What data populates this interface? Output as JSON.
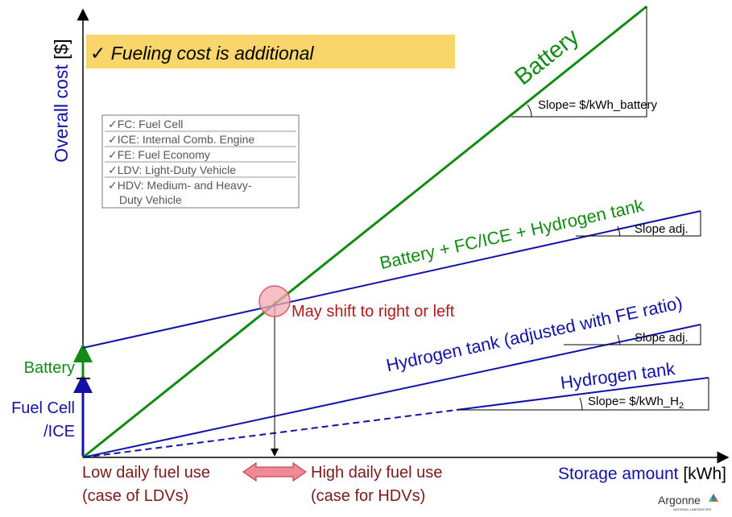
{
  "note": {
    "check": "✓",
    "text": "Fueling cost is additional"
  },
  "y_axis": {
    "label": "Overall cost",
    "unit": "[$]"
  },
  "x_axis": {
    "label": "Storage amount",
    "unit": "[kWh]"
  },
  "legend": [
    "✓FC: Fuel Cell",
    "✓ICE: Internal Comb. Engine",
    "✓FE: Fuel Economy",
    "✓LDV: Light-Duty Vehicle",
    "✓HDV: Medium- and Heavy-",
    "Duty Vehicle"
  ],
  "lines": {
    "battery": "Battery",
    "battery_fc": "Battery + FC/ICE + Hydrogen tank",
    "h2_adjusted": "Hydrogen tank (adjusted with FE ratio)",
    "h2": "Hydrogen tank"
  },
  "slopes": {
    "battery": "Slope= $/kWh_battery",
    "adj_1": "Slope adj.",
    "adj_2": "Slope adj.",
    "h2": {
      "text": "Slope= $/kWh_H",
      "sub": "2"
    }
  },
  "y_markers": {
    "battery": "Battery",
    "fuel_cell": [
      "Fuel Cell",
      "/ICE"
    ]
  },
  "crossover": "May shift to right or left",
  "x_cases": {
    "low": [
      "Low daily fuel use",
      "(case of LDVs)"
    ],
    "high": [
      "High daily fuel use",
      "(case for HDVs)"
    ]
  },
  "logo": {
    "name": "Argonne",
    "sub": "NATIONAL LABORATORY"
  }
}
